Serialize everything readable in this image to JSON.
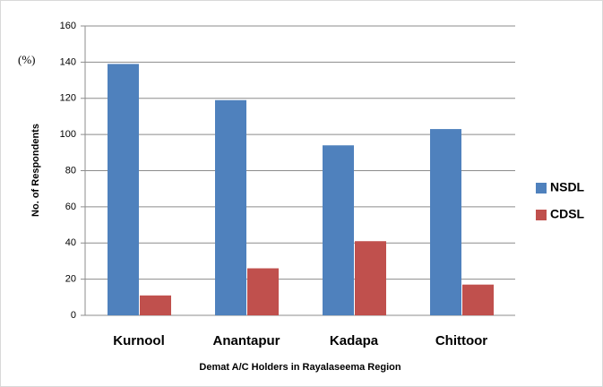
{
  "chart_data": {
    "type": "bar",
    "categories": [
      "Kurnool",
      "Anantapur",
      "Kadapa",
      "Chittoor"
    ],
    "series": [
      {
        "name": "NSDL",
        "color": "#4f81bd",
        "values": [
          139,
          119,
          94,
          103
        ]
      },
      {
        "name": "CDSL",
        "color": "#c0504d",
        "values": [
          11,
          26,
          41,
          17
        ]
      }
    ],
    "xlabel": "Demat A/C Holders in Rayalaseema  Region",
    "ylabel": "No. of Respondents",
    "annotation": "(%)",
    "ylim": [
      0,
      160
    ],
    "yticks": [
      0,
      20,
      40,
      60,
      80,
      100,
      120,
      140,
      160
    ],
    "grid": true,
    "legend": "right"
  }
}
